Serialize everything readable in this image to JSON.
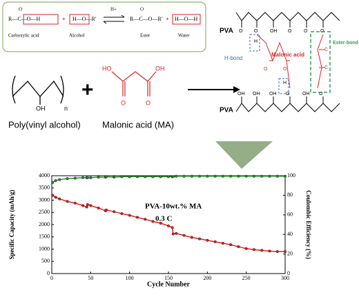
{
  "reaction": {
    "acid_formula": "R—C—O—H",
    "carbonyl": "O",
    "plus": "+",
    "alcohol_formula": "H—O—R′",
    "catalyst": "H+",
    "ester_formula": "R—C—O—R′",
    "water_formula": "H—O—H",
    "acid_label": "Carboxylic acid",
    "alcohol_label": "Alcohol",
    "ester_label": "Ester",
    "water_label": "Water"
  },
  "reactants": {
    "pva_label": "Poly(vinyl alcohol)",
    "ma_label": "Malonic acid (MA)",
    "plus": "+"
  },
  "network": {
    "pva": "PVA",
    "h_bond": "H-bond",
    "malonic_acid": "Malonic acid",
    "ester_bond": "Ester-bond"
  },
  "atoms": {
    "oh": "OH",
    "ho": "HO",
    "o": "O",
    "h": "H",
    "c": "C",
    "n": "n"
  },
  "chart_data": {
    "type": "line",
    "annotations": [
      "PVA-10wt.% MA",
      "0.3 C"
    ],
    "x_label": "Cycle Number",
    "y_label": "Specific Capacity (mAh/g)",
    "y2_label": "Coulombic Efficiency (%)",
    "x": [
      1,
      5,
      10,
      20,
      30,
      40,
      45,
      46,
      50,
      60,
      69,
      70,
      80,
      90,
      100,
      110,
      120,
      130,
      140,
      150,
      155,
      156,
      160,
      170,
      180,
      190,
      200,
      210,
      220,
      230,
      240,
      250,
      260,
      270,
      280,
      290,
      300
    ],
    "series": [
      {
        "name": "Specific Capacity",
        "color": "#e0201c",
        "values": [
          3200,
          3120,
          3050,
          2950,
          2880,
          2780,
          2720,
          2820,
          2780,
          2680,
          2570,
          2600,
          2530,
          2450,
          2380,
          2300,
          2220,
          2130,
          2060,
          1950,
          1880,
          1620,
          1640,
          1560,
          1480,
          1420,
          1360,
          1300,
          1240,
          1180,
          1100,
          1020,
          980,
          950,
          920,
          900,
          900
        ]
      },
      {
        "name": "Coulombic Efficiency",
        "color": "#2e8b2e",
        "axis": "y2",
        "values": [
          93,
          95,
          96,
          97,
          97.5,
          98,
          98,
          98,
          98,
          98.5,
          98.5,
          99,
          98.5,
          99,
          99,
          99,
          99,
          99,
          99,
          99,
          99,
          99,
          99.5,
          99.5,
          99.5,
          99.5,
          99.5,
          99.5,
          99.5,
          99.5,
          99.5,
          99.5,
          99.5,
          99.5,
          99.5,
          99.5,
          99.5
        ]
      }
    ],
    "xlim": [
      0,
      300
    ],
    "xticks": [
      0,
      50,
      100,
      150,
      200,
      250,
      300
    ],
    "ylim": [
      0,
      4000
    ],
    "yticks": [
      0,
      500,
      1000,
      1500,
      2000,
      2500,
      3000,
      3500,
      4000
    ],
    "y2lim": [
      0,
      100
    ],
    "y2ticks": [
      0,
      20,
      40,
      60,
      80,
      100
    ]
  }
}
